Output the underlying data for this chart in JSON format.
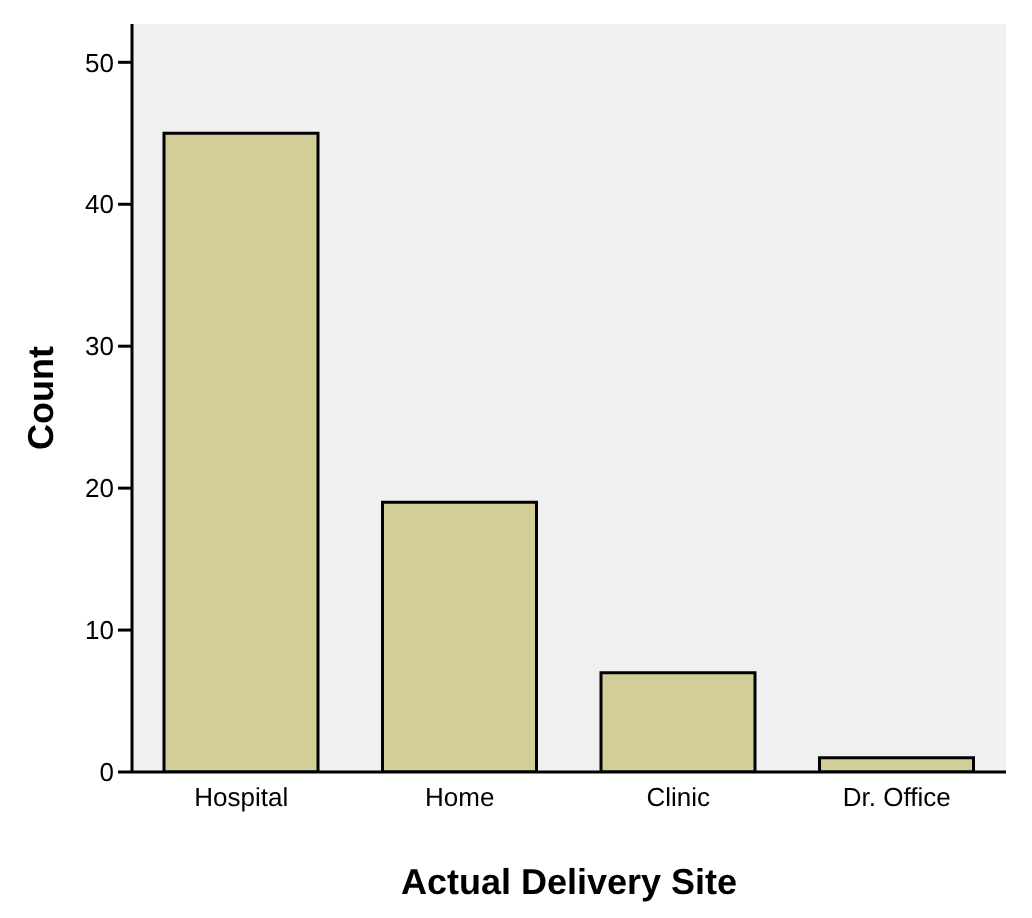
{
  "chart_data": {
    "type": "bar",
    "xlabel": "Actual Delivery Site",
    "ylabel": "Count",
    "categories": [
      "Hospital",
      "Home",
      "Clinic",
      "Dr. Office"
    ],
    "values": [
      45,
      19,
      7,
      1
    ],
    "color": "#d3ce98",
    "ylim": [
      0,
      52.7
    ],
    "yticks": [
      0,
      10,
      20,
      30,
      40,
      50
    ],
    "grid": false
  }
}
